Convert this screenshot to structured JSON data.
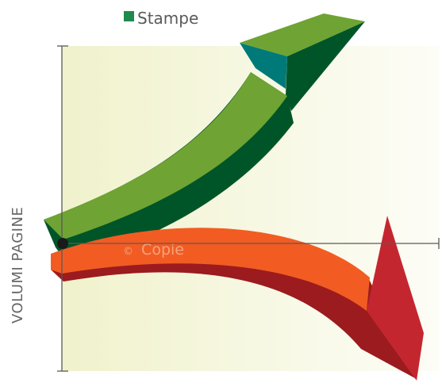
{
  "legend": {
    "label": "Stampe",
    "color": "#1f8a4c"
  },
  "y_axis": {
    "title": "VOLUMI PAGINE"
  },
  "arrows": {
    "up": {
      "name": "Stampe",
      "colors": {
        "top": "#6fa334",
        "side": "#005528",
        "head_face": "#007a78"
      }
    },
    "down": {
      "label": "Copie",
      "marker": "©",
      "colors": {
        "top": "#f25c22",
        "side": "#9b1b1f",
        "head": "#c4262f",
        "label": "#f4a37f"
      }
    }
  },
  "background": {
    "left": "#f0f2cc",
    "right": "#fdfdf7"
  },
  "axis_color": "#595959",
  "origin_color": "#1a1a1a"
}
